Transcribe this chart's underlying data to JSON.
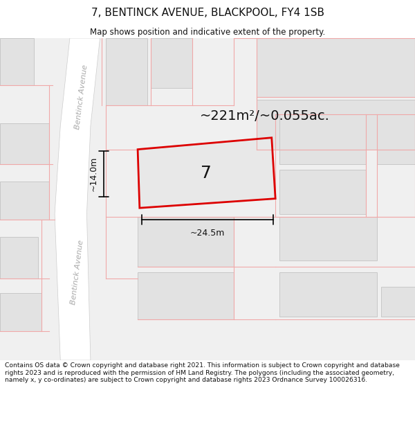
{
  "title": "7, BENTINCK AVENUE, BLACKPOOL, FY4 1SB",
  "subtitle": "Map shows position and indicative extent of the property.",
  "footnote": "Contains OS data © Crown copyright and database right 2021. This information is subject to Crown copyright and database rights 2023 and is reproduced with the permission of HM Land Registry. The polygons (including the associated geometry, namely x, y co-ordinates) are subject to Crown copyright and database rights 2023 Ordnance Survey 100026316.",
  "map_bg": "#f0f0f0",
  "white_bg": "#ffffff",
  "building_color": "#e2e2e2",
  "building_border": "#c8c8c8",
  "road_color": "#ffffff",
  "pink_color": "#f0a8a8",
  "red_color": "#dd0000",
  "black_color": "#111111",
  "gray_text": "#aaaaaa",
  "plot_label": "7",
  "area_label": "~221m²/~0.055ac.",
  "width_label": "~24.5m",
  "height_label": "~14.0m",
  "road_label": "Bentinck Avenue",
  "title_fontsize": 11,
  "subtitle_fontsize": 8.5,
  "footnote_fontsize": 6.6,
  "area_fontsize": 14,
  "plot_num_fontsize": 18,
  "dim_fontsize": 9,
  "road_fontsize": 8
}
